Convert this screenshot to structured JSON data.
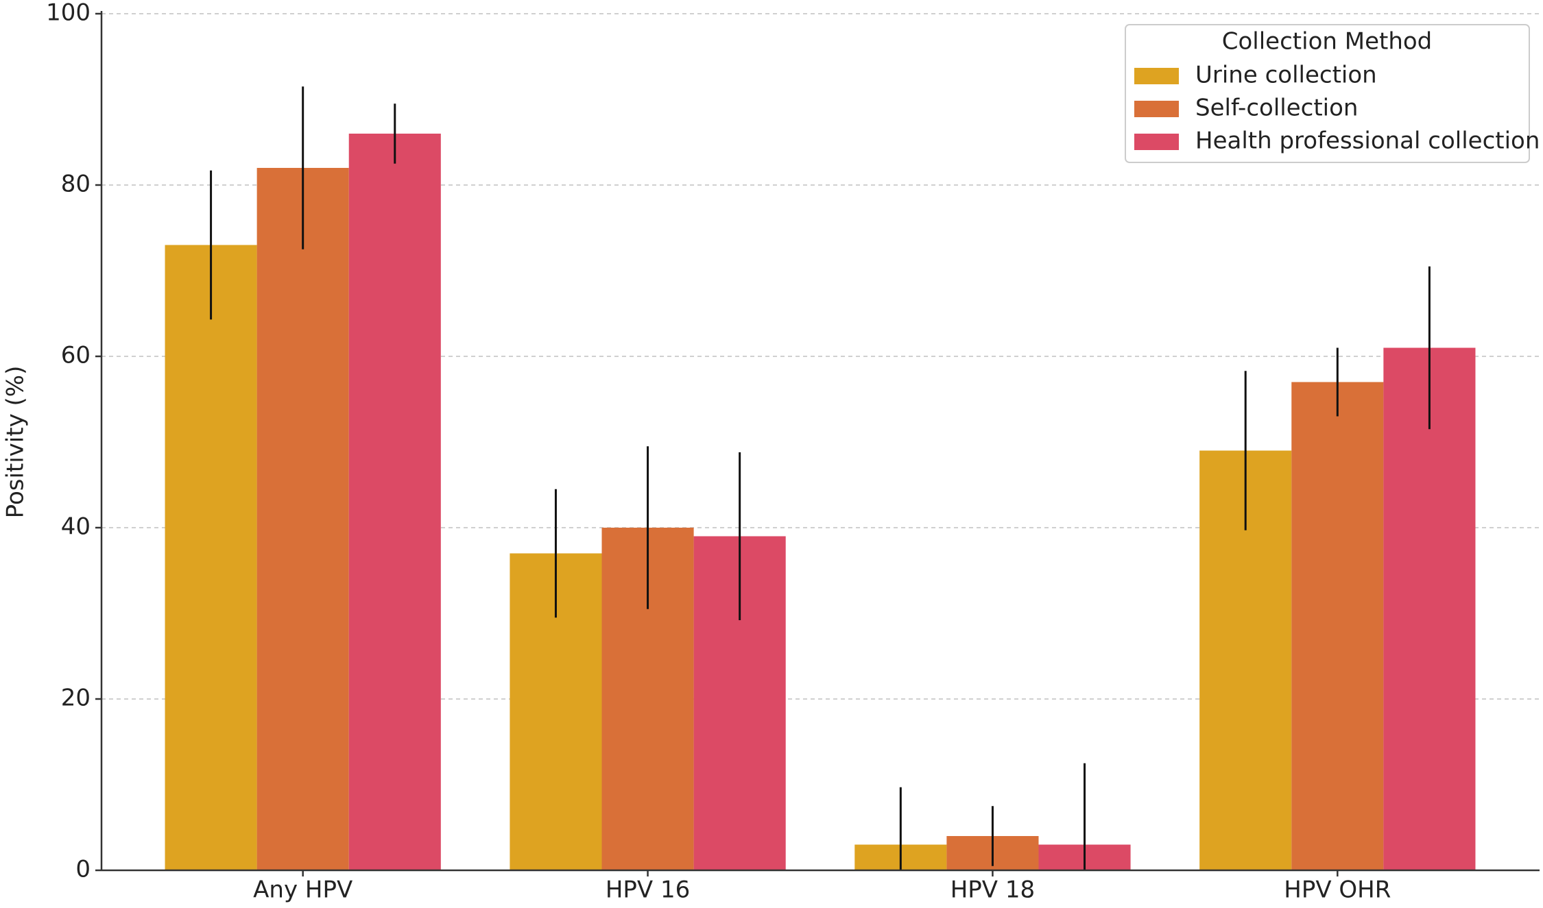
{
  "chart_data": {
    "type": "bar",
    "y_label": "Positivity (%)",
    "categories": [
      "Any HPV",
      "HPV 16",
      "HPV 18",
      "HPV OHR"
    ],
    "legend_title": "Collection Method",
    "legend_position": "upper right",
    "grid": true,
    "ylim": [
      0,
      100
    ],
    "yticks": [
      0,
      20,
      40,
      60,
      80,
      100
    ],
    "series": [
      {
        "name": "Urine collection",
        "color": "#dea321",
        "values": [
          73,
          37,
          3,
          49
        ],
        "errors": [
          8.7,
          7.5,
          6.7,
          9.3
        ]
      },
      {
        "name": "Self-collection",
        "color": "#d97038",
        "values": [
          82,
          40,
          4,
          57
        ],
        "errors": [
          9.5,
          9.5,
          3.5,
          4
        ]
      },
      {
        "name": "Health professional collection",
        "color": "#dc4a65",
        "values": [
          86,
          39,
          3,
          61
        ],
        "errors": [
          3.5,
          9.8,
          9.5,
          9.5
        ]
      }
    ]
  }
}
